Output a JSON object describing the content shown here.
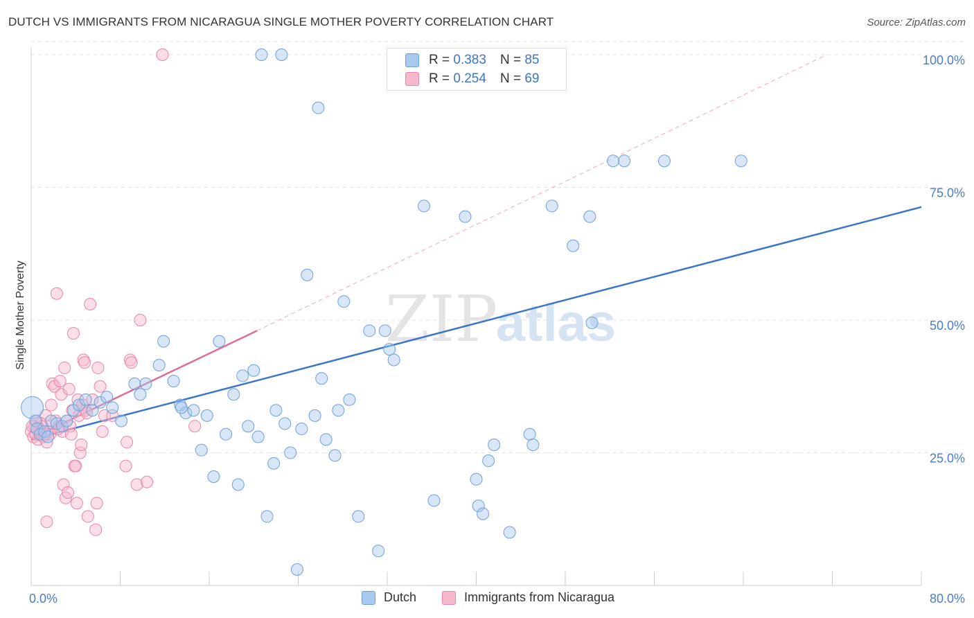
{
  "title": "DUTCH VS IMMIGRANTS FROM NICARAGUA SINGLE MOTHER POVERTY CORRELATION CHART",
  "source": "Source: ZipAtlas.com",
  "watermark": {
    "zip": "ZIP",
    "atlas": "atlas"
  },
  "legend": {
    "rows": [
      {
        "r_label": "R =",
        "r_value": "0.383",
        "n_label": "N =",
        "n_value": "85"
      },
      {
        "r_label": "R =",
        "r_value": "0.254",
        "n_label": "N =",
        "n_value": "69"
      }
    ]
  },
  "colors": {
    "dutch_fill": "#a9c8ef",
    "dutch_stroke": "#6f9fd8",
    "dutch_line": "#3b75c9",
    "nic_fill": "#f6b8cb",
    "nic_stroke": "#e985a6",
    "nic_line": "#e06b96",
    "tick_text": "#4a7cc7",
    "grid": "#e2e2e2"
  },
  "chart_data": {
    "type": "scatter",
    "title": "DUTCH VS IMMIGRANTS FROM NICARAGUA SINGLE MOTHER POVERTY CORRELATION CHART",
    "xlabel": "",
    "ylabel": "Single Mother Poverty",
    "xlim": [
      0,
      80
    ],
    "ylim": [
      0,
      100
    ],
    "x_tick_labels": [
      "0.0%",
      "80.0%"
    ],
    "y_tick_values": [
      25,
      50,
      75,
      100
    ],
    "y_tick_labels": [
      "25.0%",
      "50.0%",
      "75.0%",
      "100.0%"
    ],
    "grid": "horizontal dashed",
    "legend_position": "top-center and bottom",
    "series": [
      {
        "name": "Dutch",
        "r": 0.383,
        "n": 85,
        "trend": {
          "x": [
            0,
            80
          ],
          "y": [
            27.5,
            71.3
          ]
        },
        "points": [
          [
            0.1,
            33.5
          ],
          [
            0.4,
            31
          ],
          [
            0.5,
            29.5
          ],
          [
            0.8,
            28.5
          ],
          [
            1.2,
            29
          ],
          [
            1.5,
            28
          ],
          [
            1.8,
            31
          ],
          [
            2.3,
            30.5
          ],
          [
            2.8,
            30
          ],
          [
            3.2,
            31
          ],
          [
            3.8,
            33
          ],
          [
            4.3,
            34
          ],
          [
            4.9,
            35
          ],
          [
            5.5,
            33
          ],
          [
            6.2,
            34.5
          ],
          [
            6.8,
            35.5
          ],
          [
            7.3,
            33.5
          ],
          [
            8.1,
            31
          ],
          [
            9.3,
            38
          ],
          [
            10.3,
            38
          ],
          [
            9.8,
            36
          ],
          [
            11.5,
            41.5
          ],
          [
            11.9,
            46
          ],
          [
            12.8,
            38.5
          ],
          [
            13.4,
            34
          ],
          [
            13.9,
            32.5
          ],
          [
            13.5,
            33.5
          ],
          [
            14.6,
            33
          ],
          [
            15.3,
            25.5
          ],
          [
            15.8,
            32
          ],
          [
            16.4,
            20.5
          ],
          [
            16.9,
            46
          ],
          [
            17.5,
            28.5
          ],
          [
            18.2,
            36
          ],
          [
            18.6,
            19
          ],
          [
            19,
            39.5
          ],
          [
            19.5,
            30
          ],
          [
            20,
            40.5
          ],
          [
            20.4,
            28
          ],
          [
            21.2,
            13
          ],
          [
            21.8,
            23
          ],
          [
            22,
            33
          ],
          [
            22.5,
            100
          ],
          [
            22.8,
            30.5
          ],
          [
            23.3,
            25
          ],
          [
            23.9,
            3
          ],
          [
            24.3,
            29.5
          ],
          [
            24.8,
            58.5
          ],
          [
            25.5,
            32
          ],
          [
            25.8,
            90
          ],
          [
            26.1,
            39
          ],
          [
            26.5,
            27.5
          ],
          [
            27.3,
            24.5
          ],
          [
            27.6,
            33
          ],
          [
            28.1,
            53.5
          ],
          [
            28.6,
            35
          ],
          [
            29.4,
            13
          ],
          [
            30.4,
            48
          ],
          [
            31.2,
            6.5
          ],
          [
            31.8,
            48
          ],
          [
            32.2,
            44.5
          ],
          [
            32.6,
            42.5
          ],
          [
            35.3,
            71.5
          ],
          [
            36.2,
            16
          ],
          [
            36.8,
            100
          ],
          [
            37.3,
            100
          ],
          [
            39,
            69.5
          ],
          [
            40,
            20
          ],
          [
            40.2,
            15
          ],
          [
            40.6,
            13.5
          ],
          [
            41.1,
            23.5
          ],
          [
            41.6,
            26.5
          ],
          [
            43,
            10
          ],
          [
            44.8,
            28.5
          ],
          [
            45.1,
            26.5
          ],
          [
            46.8,
            71.5
          ],
          [
            48.7,
            64
          ],
          [
            50.2,
            69.5
          ],
          [
            50.4,
            49.5
          ],
          [
            52.3,
            80
          ],
          [
            53.3,
            80
          ],
          [
            56.9,
            80
          ],
          [
            63.8,
            80
          ],
          [
            34.2,
            100
          ],
          [
            20.7,
            100
          ]
        ]
      },
      {
        "name": "Immigrants from Nicaragua",
        "r": 0.254,
        "n": 69,
        "trend": {
          "x": [
            0,
            20.3
          ],
          "y": [
            27.7,
            48
          ]
        },
        "trend_extended": {
          "x": [
            20.3,
            71.5
          ],
          "y": [
            48,
            100
          ]
        },
        "points": [
          [
            0,
            29
          ],
          [
            0.2,
            28
          ],
          [
            0.3,
            30
          ],
          [
            0.5,
            31
          ],
          [
            0.6,
            27.5
          ],
          [
            0.8,
            29
          ],
          [
            1,
            30
          ],
          [
            1.1,
            28
          ],
          [
            1.3,
            32
          ],
          [
            1.4,
            27
          ],
          [
            1.6,
            29
          ],
          [
            1.8,
            34
          ],
          [
            1.9,
            38
          ],
          [
            2.1,
            37.5
          ],
          [
            2.2,
            31
          ],
          [
            2.3,
            55
          ],
          [
            2.5,
            30
          ],
          [
            2.6,
            38.5
          ],
          [
            2.7,
            36
          ],
          [
            2.8,
            29
          ],
          [
            2.9,
            19
          ],
          [
            3,
            41
          ],
          [
            3.1,
            16.5
          ],
          [
            3.2,
            31
          ],
          [
            3.3,
            17.5
          ],
          [
            3.4,
            37
          ],
          [
            3.5,
            30
          ],
          [
            3.6,
            28.5
          ],
          [
            3.7,
            33
          ],
          [
            3.8,
            47.5
          ],
          [
            3.9,
            22.5
          ],
          [
            4,
            22.5
          ],
          [
            4.1,
            15.5
          ],
          [
            4.2,
            35
          ],
          [
            4.3,
            32
          ],
          [
            4.4,
            25
          ],
          [
            4.5,
            26.5
          ],
          [
            4.6,
            34
          ],
          [
            4.7,
            42.5
          ],
          [
            4.8,
            42
          ],
          [
            4.9,
            33
          ],
          [
            5,
            32.5
          ],
          [
            5.1,
            13
          ],
          [
            5.3,
            53
          ],
          [
            5.5,
            35
          ],
          [
            5.8,
            10.5
          ],
          [
            5.9,
            15.5
          ],
          [
            6,
            41
          ],
          [
            6.2,
            37.5
          ],
          [
            6.4,
            29
          ],
          [
            6.6,
            32
          ],
          [
            7.3,
            32
          ],
          [
            8.5,
            22.5
          ],
          [
            8.6,
            27
          ],
          [
            8.9,
            42.5
          ],
          [
            9,
            42
          ],
          [
            9.5,
            19
          ],
          [
            9.8,
            50
          ],
          [
            10.4,
            19.5
          ],
          [
            11.8,
            100
          ],
          [
            14.7,
            30
          ],
          [
            1.4,
            12
          ],
          [
            0.9,
            30.5
          ],
          [
            0.4,
            28.5
          ],
          [
            1.7,
            28.5
          ],
          [
            2.4,
            29.5
          ],
          [
            0.7,
            29.5
          ],
          [
            1.2,
            28.5
          ],
          [
            0.1,
            30
          ]
        ]
      }
    ]
  },
  "bottom_legend": [
    {
      "label": "Dutch"
    },
    {
      "label": "Immigrants from Nicaragua"
    }
  ]
}
